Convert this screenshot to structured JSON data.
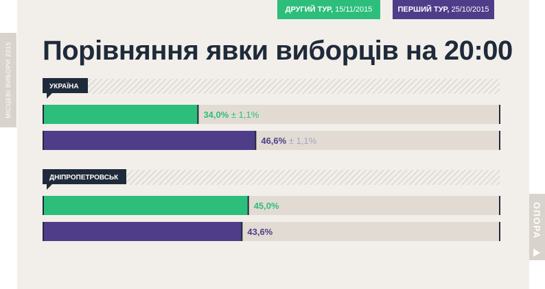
{
  "side_label": "МІСЦЕВІ ВИБОРИ 2015",
  "brand": "ОПОРА",
  "title": "Порівняння явки виборців на 20:00",
  "legend": [
    {
      "bold": "ДРУГИЙ ТУР,",
      "date": " 15/11/2015",
      "color": "#2dbe7c"
    },
    {
      "bold": "ПЕРШИЙ ТУР,",
      "date": " 25/10/2015",
      "color": "#4f3d8a"
    }
  ],
  "colors": {
    "round2": "#2dbe7c",
    "round1": "#4f3d8a",
    "track": "#e2dbd3",
    "label_bg": "#1f2a3a",
    "muted": "#a9a2c0"
  },
  "chart_data": {
    "type": "bar",
    "orientation": "horizontal",
    "xlim": [
      0,
      100
    ],
    "categories": [
      "УКРАЇНА",
      "ДНІПРОПЕТРОВСЬК"
    ],
    "series": [
      {
        "name": "ДРУГИЙ ТУР, 15/11/2015",
        "values": [
          34.0,
          45.0
        ],
        "labels": [
          "34,0%",
          "45,0%"
        ],
        "errors": [
          "± 1,1%",
          ""
        ]
      },
      {
        "name": "ПЕРШИЙ ТУР, 25/10/2015",
        "values": [
          46.6,
          43.6
        ],
        "labels": [
          "46,6%",
          "43,6%"
        ],
        "errors": [
          "± 1,1%",
          ""
        ]
      }
    ]
  }
}
